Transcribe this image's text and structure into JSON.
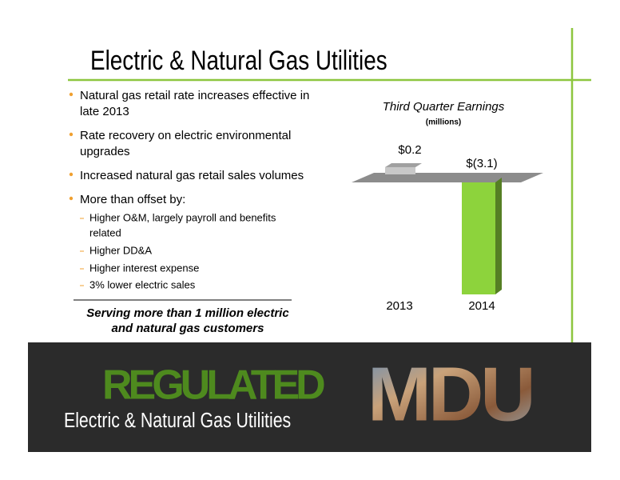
{
  "title": "Electric & Natural Gas Utilities",
  "bullets": [
    [
      "Natural gas retail rate increases effective in",
      "late 2013"
    ],
    [
      "Rate recovery on electric environmental",
      "upgrades"
    ],
    [
      "Increased natural gas retail sales volumes"
    ],
    [
      "More than offset by:"
    ]
  ],
  "sub_bullets": [
    [
      "Higher O&M, largely payroll and benefits",
      "related"
    ],
    [
      "Higher DD&A"
    ],
    [
      "Higher interest expense"
    ],
    [
      "3% lower electric sales"
    ]
  ],
  "tagline": [
    "Serving more than 1 million electric",
    "and natural gas customers"
  ],
  "banner": {
    "headline": "REGULATED",
    "subtitle": "Electric & Natural Gas Utilities",
    "logo": "MDU"
  },
  "chart_data": {
    "type": "bar",
    "title": "Third Quarter Earnings",
    "subtitle": "(millions)",
    "categories": [
      "2013",
      "2014"
    ],
    "values": [
      0.2,
      -3.1
    ],
    "value_labels": [
      "$0.2",
      "$(3.1)"
    ],
    "colors": [
      "#c8c8c8",
      "#8dd33c"
    ]
  }
}
